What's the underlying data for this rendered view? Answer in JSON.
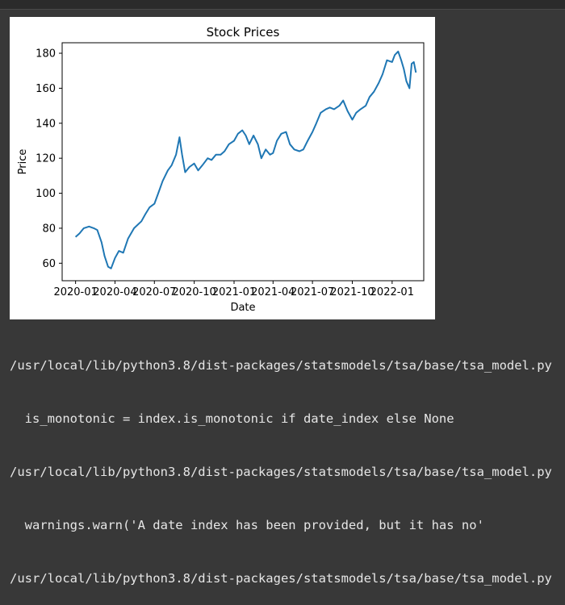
{
  "chart_data": {
    "type": "line",
    "title": "Stock Prices",
    "xlabel": "Date",
    "ylabel": "Price",
    "xlim": [
      "2019-12-01",
      "2022-03-15"
    ],
    "ylim": [
      50,
      186
    ],
    "yticks": [
      60,
      80,
      100,
      120,
      140,
      160,
      180
    ],
    "xtick_dates": [
      "2020-01-01",
      "2020-04-01",
      "2020-07-01",
      "2020-10-01",
      "2021-01-01",
      "2021-04-01",
      "2021-07-01",
      "2021-10-01",
      "2022-01-01"
    ],
    "xtick_labels": [
      "2020-01",
      "2020-04",
      "2020-07",
      "2020-10",
      "2021-01",
      "2021-04",
      "2021-07",
      "2021-10",
      "2022-01"
    ],
    "grid": false,
    "color": "#1f77b4",
    "series": [
      {
        "x": [
          "2020-01-01",
          "2020-01-10",
          "2020-01-20",
          "2020-02-01",
          "2020-02-12",
          "2020-02-20",
          "2020-03-01",
          "2020-03-08",
          "2020-03-16",
          "2020-03-23",
          "2020-04-01",
          "2020-04-10",
          "2020-04-20",
          "2020-05-01",
          "2020-05-15",
          "2020-06-01",
          "2020-06-10",
          "2020-06-20",
          "2020-07-01",
          "2020-07-10",
          "2020-07-20",
          "2020-08-01",
          "2020-08-10",
          "2020-08-20",
          "2020-08-28",
          "2020-09-03",
          "2020-09-10",
          "2020-09-20",
          "2020-10-01",
          "2020-10-10",
          "2020-10-20",
          "2020-11-01",
          "2020-11-10",
          "2020-11-20",
          "2020-12-01",
          "2020-12-10",
          "2020-12-20",
          "2021-01-01",
          "2021-01-10",
          "2021-01-20",
          "2021-01-28",
          "2021-02-05",
          "2021-02-15",
          "2021-02-25",
          "2021-03-05",
          "2021-03-15",
          "2021-03-25",
          "2021-04-01",
          "2021-04-10",
          "2021-04-20",
          "2021-05-01",
          "2021-05-10",
          "2021-05-20",
          "2021-06-01",
          "2021-06-10",
          "2021-06-20",
          "2021-07-01",
          "2021-07-10",
          "2021-07-20",
          "2021-08-01",
          "2021-08-10",
          "2021-08-20",
          "2021-09-01",
          "2021-09-10",
          "2021-09-20",
          "2021-10-01",
          "2021-10-10",
          "2021-10-20",
          "2021-11-01",
          "2021-11-10",
          "2021-11-20",
          "2021-12-01",
          "2021-12-10",
          "2021-12-20",
          "2022-01-01",
          "2022-01-07",
          "2022-01-15",
          "2022-01-22",
          "2022-01-28",
          "2022-02-03",
          "2022-02-10",
          "2022-02-15",
          "2022-02-20",
          "2022-02-25"
        ],
        "y": [
          75,
          77,
          80,
          81,
          80,
          79,
          72,
          64,
          58,
          57,
          63,
          67,
          66,
          74,
          80,
          84,
          88,
          92,
          94,
          100,
          107,
          113,
          116,
          122,
          132,
          122,
          112,
          115,
          117,
          113,
          116,
          120,
          119,
          122,
          122,
          124,
          128,
          130,
          134,
          136,
          133,
          128,
          133,
          128,
          120,
          125,
          122,
          123,
          130,
          134,
          135,
          128,
          125,
          124,
          125,
          130,
          135,
          140,
          146,
          148,
          149,
          148,
          150,
          153,
          147,
          142,
          146,
          148,
          150,
          155,
          158,
          163,
          168,
          176,
          175,
          179,
          181,
          176,
          171,
          164,
          160,
          174,
          175,
          169
        ]
      }
    ]
  },
  "output": {
    "line1": "/usr/local/lib/python3.8/dist-packages/statsmodels/tsa/base/tsa_model.py",
    "line2": "  is_monotonic = index.is_monotonic if date_index else None",
    "line3": "/usr/local/lib/python3.8/dist-packages/statsmodels/tsa/base/tsa_model.py",
    "line4": "  warnings.warn('A date index has been provided, but it has no'",
    "line5": "/usr/local/lib/python3.8/dist-packages/statsmodels/tsa/base/tsa_model.py"
  }
}
